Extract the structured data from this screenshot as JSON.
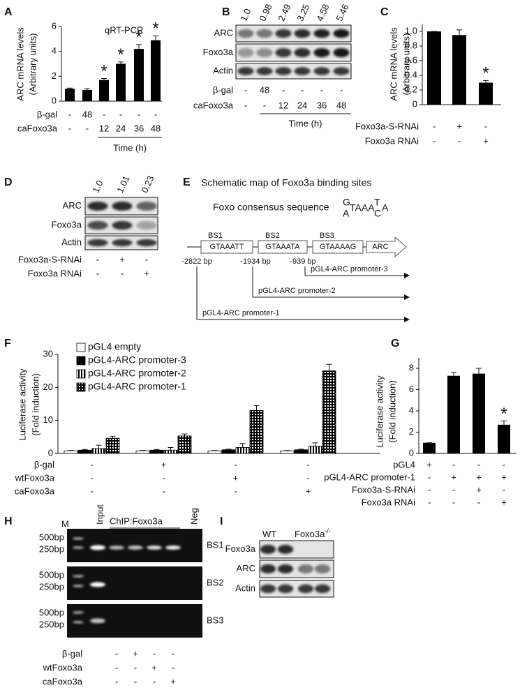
{
  "panel_letters": [
    "A",
    "B",
    "C",
    "D",
    "E",
    "F",
    "G",
    "H",
    "I"
  ],
  "chart_data": [
    {
      "type": "bar",
      "title": "qRT-PCR",
      "y_label": [
        "ARC mRNA levels",
        "(Arbitrary units)"
      ],
      "values": [
        1,
        0.9,
        1.7,
        3.0,
        4.2,
        4.9
      ],
      "errors": [
        0.05,
        0.1,
        0.12,
        0.15,
        0.35,
        0.35
      ],
      "significance": [
        null,
        null,
        "*",
        "*",
        "*",
        "*"
      ],
      "color": "#000000",
      "ylim": [
        0,
        6
      ],
      "yticks": [
        0,
        2,
        4,
        6
      ],
      "conditions": [
        {
          "name": "β-gal",
          "values": [
            "-",
            "48",
            "-",
            "-",
            "-",
            "-"
          ]
        },
        {
          "name": "caFoxo3a",
          "values": [
            "-",
            "-",
            "12",
            "24",
            "36",
            "48"
          ]
        }
      ],
      "condition_group_label": "Time (h)"
    },
    {
      "type": "bar",
      "y_label": [
        "ARC mRNA levels",
        "(Arbitrary units)"
      ],
      "values": [
        1,
        0.95,
        0.3
      ],
      "errors": [
        0,
        0.07,
        0.03
      ],
      "significance": [
        null,
        null,
        "*"
      ],
      "color": "#000000",
      "ylim": [
        0,
        1.1
      ],
      "yticks": [
        0,
        0.2,
        0.4,
        0.6,
        0.8,
        {
          "value": 1,
          "label": "1.0"
        }
      ],
      "conditions": [
        {
          "name": "Foxo3a-S-RNAi",
          "values": [
            "-",
            "+",
            "-"
          ]
        },
        {
          "name": "Foxo3a RNAi",
          "values": [
            "-",
            "-",
            "+"
          ]
        }
      ]
    },
    {
      "type": "grouped_bar",
      "y_label": [
        "Luciferase activity",
        "(Fold induction)"
      ],
      "series": [
        {
          "name": "pGL4 empty",
          "pattern": "open",
          "values": [
            0.8,
            0.8,
            0.8,
            0.8
          ],
          "errors": [
            0.1,
            0.1,
            0.1,
            0.1
          ]
        },
        {
          "name": "pGL4-ARC promoter-3",
          "pattern": "solid",
          "values": [
            1,
            1,
            1.1,
            1.1
          ],
          "errors": [
            0.2,
            0.2,
            0.2,
            0.2
          ]
        },
        {
          "name": "pGL4-ARC promoter-2",
          "pattern": "vertical-stripes",
          "values": [
            1.5,
            1,
            1.8,
            2.2
          ],
          "errors": [
            1,
            0.8,
            1.2,
            1
          ]
        },
        {
          "name": "pGL4-ARC promoter-1",
          "pattern": "grid",
          "values": [
            4.6,
            5.3,
            13,
            25
          ],
          "errors": [
            0.6,
            0.6,
            1.5,
            2
          ]
        }
      ],
      "ylim": [
        0,
        30
      ],
      "yticks": [
        0,
        10,
        20,
        30
      ],
      "conditions": [
        {
          "name": "β-gal",
          "values": [
            "-",
            "+",
            "-",
            "-"
          ]
        },
        {
          "name": "wtFoxo3a",
          "values": [
            "-",
            "-",
            "+",
            "-"
          ]
        },
        {
          "name": "caFoxo3a",
          "values": [
            "-",
            "-",
            "-",
            "+"
          ]
        }
      ]
    },
    {
      "type": "bar",
      "y_label": [
        "Luciferase activity",
        "(Fold induction)"
      ],
      "values": [
        1,
        7.3,
        7.5,
        2.7
      ],
      "errors": [
        0,
        0.3,
        0.5,
        0.35
      ],
      "significance": [
        null,
        null,
        null,
        "*"
      ],
      "color": "#000000",
      "ylim": [
        0,
        9
      ],
      "yticks": [
        0,
        2,
        4,
        6,
        8
      ],
      "conditions": [
        {
          "name": "pGL4",
          "values": [
            "+",
            "-",
            "-",
            "-"
          ]
        },
        {
          "name": "pGL4-ARC promoter-1",
          "values": [
            "-",
            "+",
            "+",
            "+"
          ]
        },
        {
          "name": "Foxo3a-S-RNAi",
          "values": [
            "-",
            "-",
            "+",
            "-"
          ]
        },
        {
          "name": "Foxo3a RNAi",
          "values": [
            "-",
            "-",
            "-",
            "+"
          ]
        }
      ]
    }
  ],
  "blots": [
    {
      "lane_labels": [
        "1.0",
        "0.98",
        "2.49",
        "3.25",
        "4.58",
        "5.46"
      ],
      "rows": [
        "ARC",
        "Foxo3a",
        "Actin"
      ],
      "conditions": [
        {
          "name": "β-gal",
          "values": [
            "-",
            "48",
            "-",
            "-",
            "-",
            "-"
          ]
        },
        {
          "name": "caFoxo3a",
          "values": [
            "-",
            "-",
            "12",
            "24",
            "36",
            "48"
          ]
        }
      ],
      "condition_group_label": "Time (h)"
    },
    {
      "lane_labels": [
        "1.0",
        "1.01",
        "0.23"
      ],
      "rows": [
        "ARC",
        "Foxo3a",
        "Actin"
      ],
      "conditions": [
        {
          "name": "Foxo3a-S-RNAi",
          "values": [
            "-",
            "+",
            "-"
          ]
        },
        {
          "name": "Foxo3a RNAi",
          "values": [
            "-",
            "-",
            "+"
          ]
        }
      ]
    },
    {
      "lane_groups": [
        {
          "text": "WT"
        },
        {
          "text": "Foxo3a",
          "sup": "-/-"
        }
      ],
      "rows": [
        "Foxo3a",
        "ARC",
        "Actin"
      ]
    }
  ],
  "schematic": {
    "title": "Schematic map of Foxo3a binding sites",
    "consensus_label": "Foxo consensus sequence",
    "consensus": [
      "G",
      "A",
      "TAAA",
      "T",
      "C",
      "A"
    ],
    "sites": [
      {
        "name": "BS1",
        "sequence": "GTAAATT",
        "position": "-2822 bp"
      },
      {
        "name": "BS2",
        "sequence": "GTAAATA",
        "position": "-1934 bp"
      },
      {
        "name": "BS3",
        "sequence": "GTAAAAG",
        "position": "-939 bp"
      }
    ],
    "gene": "ARC",
    "constructs": [
      "pGL4-ARC promoter-3",
      "pGL4-ARC promoter-2",
      "pGL4-ARC promoter-1"
    ]
  },
  "gel": {
    "lanes": [
      "M",
      "Input",
      "Neg"
    ],
    "chip_label": "ChIP:Foxo3a",
    "sites": [
      {
        "name": "BS1",
        "sizes": [
          "500bp",
          "250bp"
        ]
      },
      {
        "name": "BS2",
        "sizes": [
          "500bp",
          "250bp"
        ]
      },
      {
        "name": "BS3",
        "sizes": [
          "500bp",
          "250bp"
        ]
      }
    ],
    "conditions": [
      {
        "name": "β-gal",
        "values": [
          "-",
          "+",
          "-",
          "-"
        ]
      },
      {
        "name": "wtFoxo3a",
        "values": [
          "-",
          "-",
          "+",
          "-"
        ]
      },
      {
        "name": "caFoxo3a",
        "values": [
          "-",
          "-",
          "-",
          "+"
        ]
      }
    ]
  }
}
